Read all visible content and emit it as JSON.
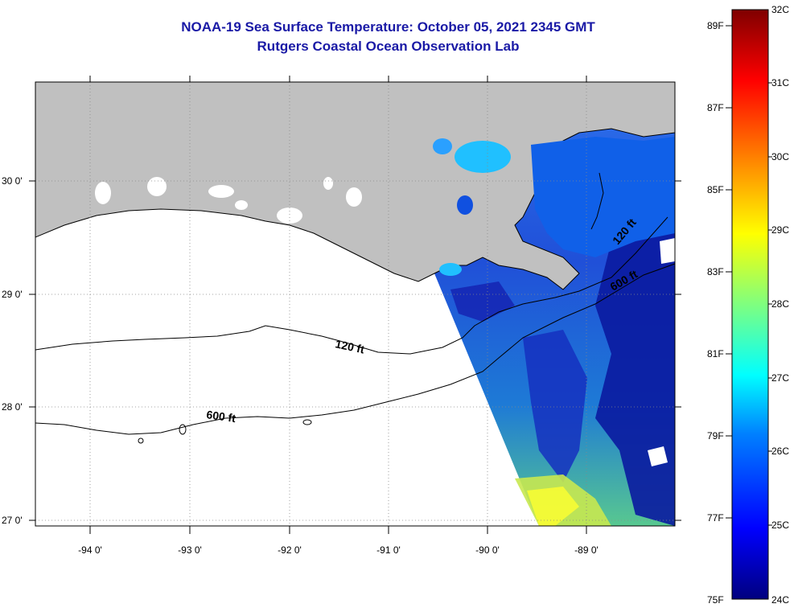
{
  "title": {
    "line1": "NOAA-19 Sea Surface Temperature:  October 05, 2021 2345 GMT",
    "line2": "Rutgers Coastal Ocean Observation Lab"
  },
  "map": {
    "lon_ticks": [
      "-94 0'",
      "-93 0'",
      "-92 0'",
      "-91 0'",
      "-90 0'",
      "-89 0'"
    ],
    "lat_ticks": [
      "30 0'",
      "29 0'",
      "28 0'",
      "27 0'"
    ],
    "contours": [
      "120 ft",
      "600 ft",
      "120 ft",
      "600 ft"
    ],
    "colors": {
      "land": "#c0c0c0",
      "ocean_nodata": "#ffffff",
      "cloud": "#ffffff",
      "contour": "#000000"
    }
  },
  "colorbar": {
    "fahrenheit_labels": [
      "89F",
      "87F",
      "85F",
      "83F",
      "81F",
      "79F",
      "77F",
      "75F"
    ],
    "celsius_labels": [
      "32C",
      "31C",
      "30C",
      "29C",
      "28C",
      "27C",
      "26C",
      "25C",
      "24C"
    ],
    "colors": [
      "#00007f",
      "#0000ff",
      "#00a0ff",
      "#00ffff",
      "#7fff7f",
      "#ffff00",
      "#ff8000",
      "#ff0000",
      "#7f0000"
    ]
  }
}
